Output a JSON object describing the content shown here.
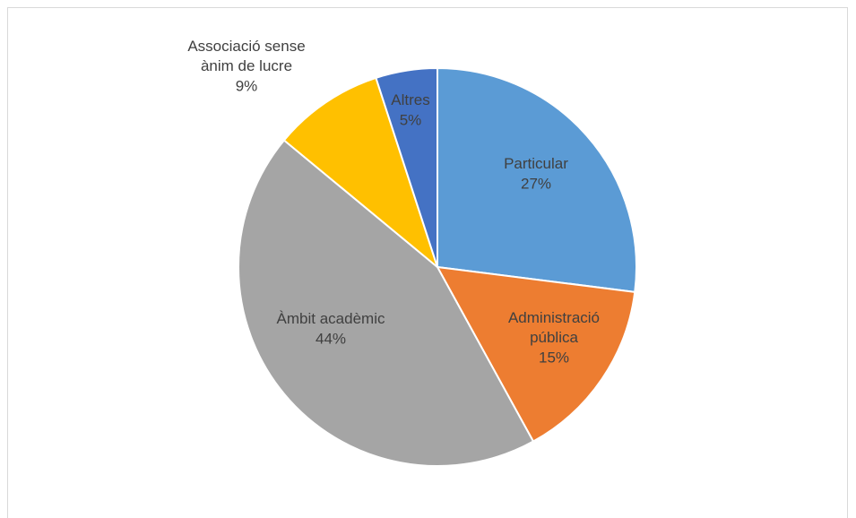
{
  "chart_data": {
    "type": "pie",
    "categories": [
      "Particular",
      "Administració pública",
      "Àmbit acadèmic",
      "Associació sense ànim de lucre",
      "Altres"
    ],
    "values": [
      27,
      15,
      44,
      9,
      5
    ],
    "value_labels": [
      "27%",
      "15%",
      "44%",
      "9%",
      "5%"
    ],
    "colors": [
      "#5b9bd5",
      "#ed7d31",
      "#a5a5a5",
      "#ffc000",
      "#4472c4"
    ]
  }
}
